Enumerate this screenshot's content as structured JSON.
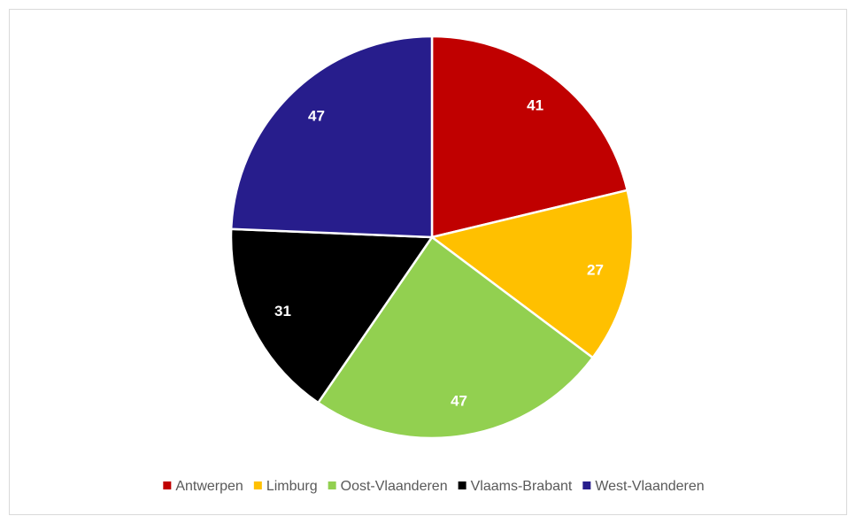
{
  "chart_data": {
    "type": "pie",
    "categories": [
      "Antwerpen",
      "Limburg",
      "Oost-Vlaanderen",
      "Vlaams-Brabant",
      "West-Vlaanderen"
    ],
    "values": [
      41,
      27,
      47,
      31,
      47
    ],
    "colors": [
      "#c00000",
      "#ffc000",
      "#92d050",
      "#000000",
      "#271d8c"
    ],
    "legend": "bottom"
  }
}
